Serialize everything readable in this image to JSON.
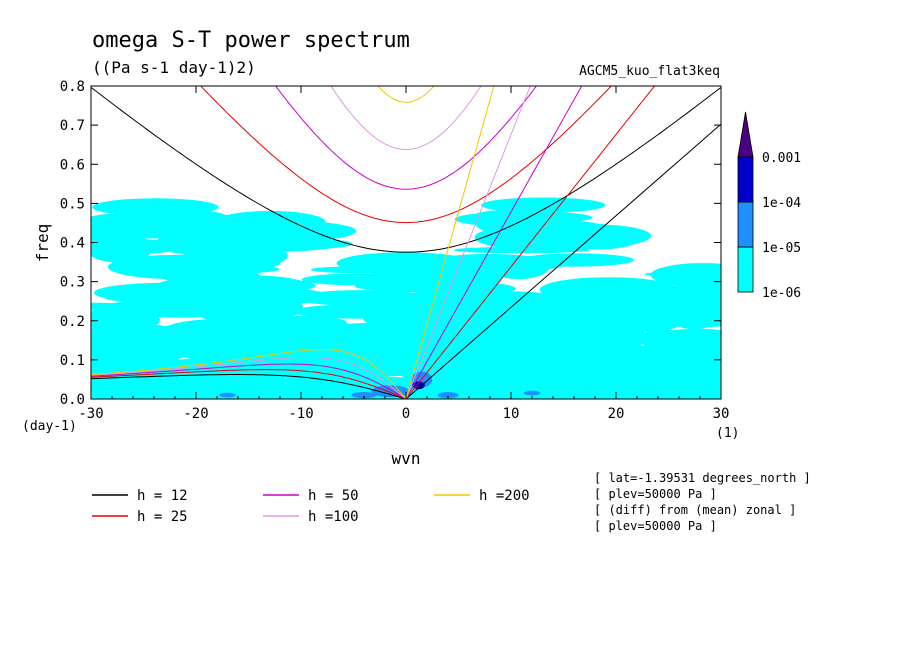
{
  "title": "omega S-T power spectrum",
  "subtitle": "((Pa s-1 day-1)2)",
  "run_label": "AGCM5_kuo_flat3keq",
  "chart_data": {
    "type": "contour",
    "xlabel": "wvn",
    "ylabel": "freq",
    "x_unit": "(1)",
    "y_unit": "(day-1)",
    "xlim": [
      -30,
      30
    ],
    "ylim": [
      0,
      0.8
    ],
    "x_ticks": [
      -30,
      -20,
      -10,
      0,
      10,
      20,
      30
    ],
    "x_tick_labels": [
      "-30",
      "-20",
      "-10",
      "0",
      "10",
      "20",
      "30"
    ],
    "y_ticks": [
      0,
      0.1,
      0.2,
      0.3,
      0.4,
      0.5,
      0.6,
      0.7,
      0.8
    ],
    "y_tick_labels": [
      "0.0",
      "0.1",
      "0.2",
      "0.3",
      "0.4",
      "0.5",
      "0.6",
      "0.7",
      "0.8"
    ],
    "colorbar": {
      "levels": [
        "1e-06",
        "1e-05",
        "1e-04",
        "0.001"
      ],
      "colors": [
        "#00ffff",
        "#1e90ff",
        "#0000cd",
        "#4b0082"
      ]
    },
    "dispersion_curves": [
      {
        "name": "h = 12",
        "h": 12,
        "color": "#000000"
      },
      {
        "name": "h = 25",
        "h": 25,
        "color": "#e60000"
      },
      {
        "name": "h = 50",
        "h": 50,
        "color": "#cc00cc"
      },
      {
        "name": "h =100",
        "h": 100,
        "color": "#dd99dd"
      },
      {
        "name": "h =200",
        "h": 200,
        "color": "#f0c800"
      }
    ],
    "power_regions": [
      {
        "level": "1e-06",
        "x": [
          -30,
          30
        ],
        "y": [
          0.0,
          0.55
        ],
        "note": "broad cyan coverage"
      },
      {
        "level": "1e-05",
        "x": [
          -5,
          3
        ],
        "y": [
          0.0,
          0.08
        ],
        "note": "blue patches near origin"
      }
    ]
  },
  "info_lines": [
    "[ lat=-1.39531 degrees_north ]",
    "[ plev=50000 Pa ]",
    "[ (diff) from (mean) zonal ]",
    "[ plev=50000 Pa ]"
  ]
}
